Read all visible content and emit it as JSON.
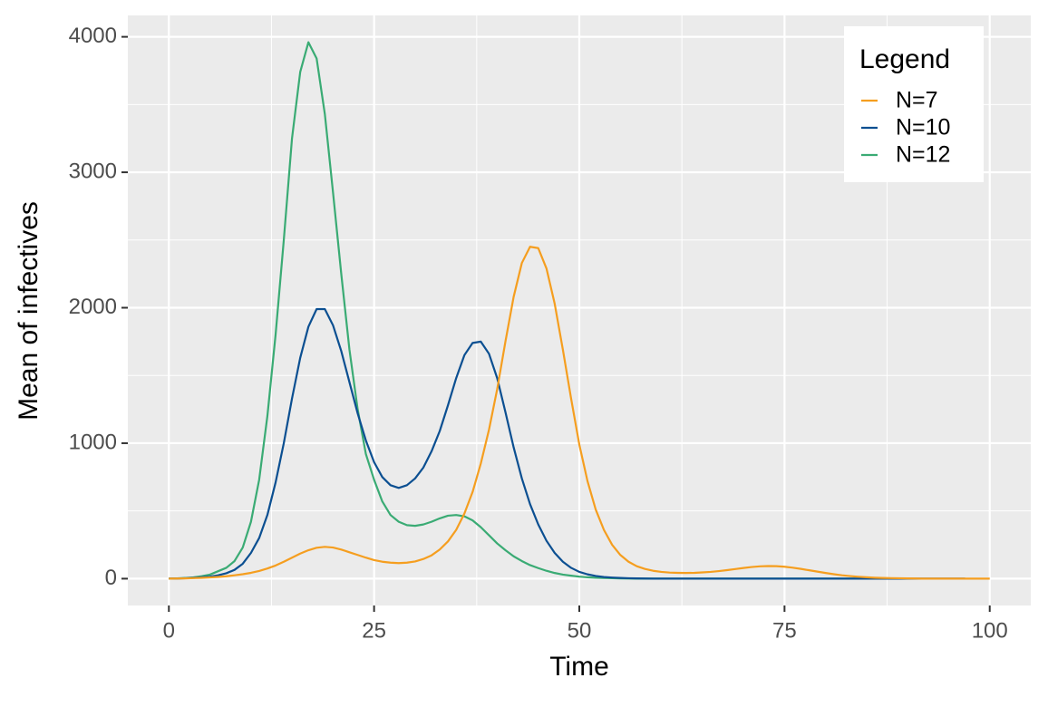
{
  "chart_data": {
    "type": "line",
    "x_label": "Time",
    "y_label": "Mean of infectives",
    "x": [
      0,
      1,
      2,
      3,
      4,
      5,
      6,
      7,
      8,
      9,
      10,
      11,
      12,
      13,
      14,
      15,
      16,
      17,
      18,
      19,
      20,
      21,
      22,
      23,
      24,
      25,
      26,
      27,
      28,
      29,
      30,
      31,
      32,
      33,
      34,
      35,
      36,
      37,
      38,
      39,
      40,
      41,
      42,
      43,
      44,
      45,
      46,
      47,
      48,
      49,
      50,
      51,
      52,
      53,
      54,
      55,
      56,
      57,
      58,
      59,
      60,
      61,
      62,
      63,
      64,
      65,
      66,
      67,
      68,
      69,
      70,
      71,
      72,
      73,
      74,
      75,
      76,
      77,
      78,
      79,
      80,
      81,
      82,
      83,
      84,
      85,
      86,
      87,
      88,
      89,
      90,
      91,
      92,
      93,
      94,
      95,
      96,
      97,
      98,
      99,
      100
    ],
    "series": [
      {
        "name": "N=7",
        "color": "#f59e1f",
        "values": [
          0,
          1,
          2,
          4,
          6,
          9,
          13,
          18,
          25,
          33,
          43,
          57,
          75,
          97,
          125,
          155,
          185,
          210,
          228,
          235,
          230,
          215,
          195,
          175,
          155,
          137,
          125,
          118,
          115,
          118,
          127,
          145,
          172,
          215,
          275,
          360,
          480,
          640,
          850,
          1100,
          1400,
          1750,
          2080,
          2330,
          2450,
          2440,
          2290,
          2030,
          1690,
          1330,
          990,
          720,
          510,
          360,
          250,
          175,
          125,
          92,
          72,
          58,
          50,
          45,
          43,
          42,
          43,
          46,
          50,
          56,
          63,
          71,
          79,
          86,
          91,
          93,
          92,
          88,
          81,
          72,
          62,
          52,
          42,
          33,
          25,
          19,
          14,
          10,
          7,
          5,
          4,
          3,
          2,
          1,
          0,
          0,
          0,
          0,
          0,
          0,
          0,
          0,
          0
        ]
      },
      {
        "name": "N=10",
        "color": "#0b4f91",
        "values": [
          0,
          1,
          3,
          6,
          10,
          15,
          25,
          40,
          65,
          110,
          190,
          300,
          470,
          710,
          1000,
          1330,
          1630,
          1860,
          1990,
          1990,
          1870,
          1680,
          1450,
          1220,
          1020,
          860,
          750,
          690,
          670,
          690,
          740,
          820,
          940,
          1090,
          1280,
          1480,
          1650,
          1740,
          1750,
          1660,
          1480,
          1230,
          970,
          740,
          550,
          400,
          280,
          190,
          125,
          80,
          50,
          32,
          20,
          12,
          8,
          5,
          3,
          2,
          1,
          0,
          0,
          0,
          0,
          0,
          0,
          0,
          0,
          0,
          0,
          0,
          0,
          0,
          0,
          0,
          0,
          0,
          0,
          0,
          0,
          0,
          0,
          0,
          0,
          0,
          0,
          0,
          0,
          0,
          0,
          0,
          0,
          0,
          0,
          0,
          0,
          0,
          0,
          0,
          null,
          null,
          null
        ]
      },
      {
        "name": "N=12",
        "color": "#3aab74",
        "values": [
          0,
          2,
          5,
          10,
          18,
          30,
          55,
          80,
          130,
          230,
          420,
          730,
          1200,
          1800,
          2500,
          3250,
          3740,
          3960,
          3840,
          3430,
          2850,
          2250,
          1690,
          1250,
          920,
          730,
          570,
          470,
          420,
          395,
          390,
          400,
          420,
          445,
          465,
          470,
          460,
          430,
          380,
          320,
          260,
          210,
          165,
          130,
          100,
          78,
          58,
          42,
          30,
          22,
          15,
          10,
          7,
          5,
          3,
          2,
          1,
          0,
          0,
          0,
          0,
          0,
          0,
          0,
          0,
          0,
          0,
          0,
          0,
          0,
          0,
          0,
          0,
          0,
          0,
          0,
          0,
          0,
          0,
          0,
          0,
          0,
          0,
          0,
          0,
          0,
          0,
          null,
          null,
          null,
          null,
          null,
          null,
          null,
          null,
          null,
          null,
          null,
          null,
          null,
          null
        ]
      }
    ],
    "xlim": [
      -5,
      105
    ],
    "xticks": [
      0,
      25,
      50,
      75,
      100
    ],
    "ylim": [
      -198,
      4158
    ],
    "yticks": [
      0,
      1000,
      2000,
      3000,
      4000
    ],
    "grid": true,
    "legend_title": "Legend",
    "legend_position": "top-right"
  }
}
